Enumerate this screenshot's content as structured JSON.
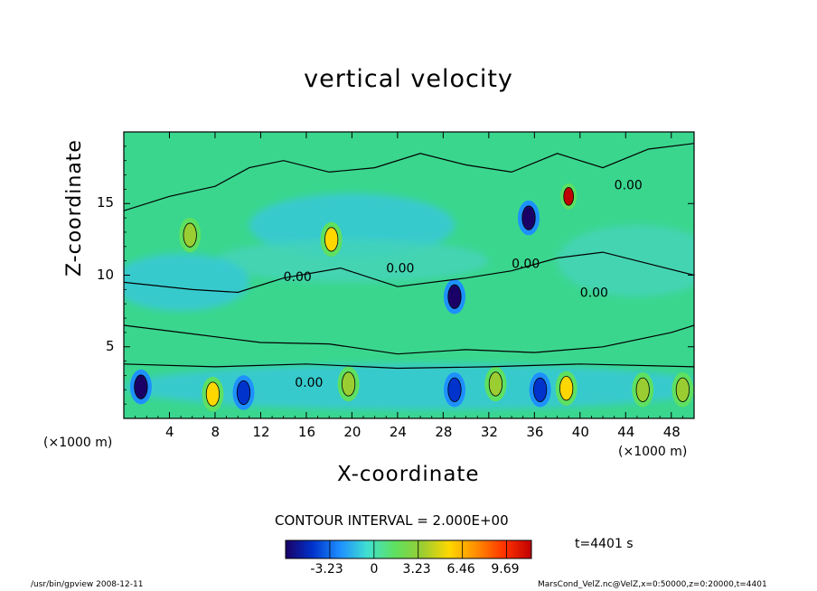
{
  "chart_data": {
    "type": "heatmap",
    "title": "vertical velocity",
    "xlabel": "X-coordinate",
    "ylabel": "Z-coordinate",
    "x_unit": "(×1000 m)",
    "y_unit": "(×1000 m)",
    "xlim": [
      0,
      50
    ],
    "ylim": [
      0,
      20
    ],
    "x_ticks": [
      4,
      8,
      12,
      16,
      20,
      24,
      28,
      32,
      36,
      40,
      44,
      48
    ],
    "y_ticks": [
      5,
      10,
      15
    ],
    "contour_labels": [
      "0.00",
      "0.00",
      "0.00",
      "0.00",
      "0.00",
      "0.00"
    ],
    "contour_interval": "CONTOUR INTERVAL = 2.000E+00",
    "time": "t=4401 s",
    "colorbar": {
      "range": [
        -6.46,
        11.5
      ],
      "ticks": [
        "-3.23",
        "0",
        "3.23",
        "6.46",
        "9.69"
      ],
      "colors": [
        "#1a0066",
        "#0033cc",
        "#1e90ff",
        "#40e0d0",
        "#5ee060",
        "#9acd32",
        "#ffd700",
        "#ff8c00",
        "#ff3300",
        "#c00000"
      ]
    },
    "features": [
      {
        "type": "updraft-core",
        "x": 7.8,
        "z": 1.7,
        "value": 5.5
      },
      {
        "type": "updraft-core",
        "x": 19.7,
        "z": 2.4,
        "value": 4.0
      },
      {
        "type": "updraft-core",
        "x": 32.6,
        "z": 2.4,
        "value": 4.0
      },
      {
        "type": "updraft-core",
        "x": 38.8,
        "z": 2.1,
        "value": 4.5
      },
      {
        "type": "updraft-core",
        "x": 45.5,
        "z": 2.0,
        "value": 4.0
      },
      {
        "type": "updraft-core",
        "x": 49.0,
        "z": 2.0,
        "value": 3.5
      },
      {
        "type": "updraft-core",
        "x": 39.0,
        "z": 15.5,
        "value": 11.0
      },
      {
        "type": "updraft-core",
        "x": 18.2,
        "z": 12.5,
        "value": 5.0
      },
      {
        "type": "updraft-core",
        "x": 5.8,
        "z": 12.8,
        "value": 4.0
      },
      {
        "type": "downdraft-core",
        "x": 1.5,
        "z": 2.2,
        "value": -5.0
      },
      {
        "type": "downdraft-core",
        "x": 10.5,
        "z": 1.8,
        "value": -4.5
      },
      {
        "type": "downdraft-core",
        "x": 29.0,
        "z": 2.0,
        "value": -4.5
      },
      {
        "type": "downdraft-core",
        "x": 36.5,
        "z": 2.0,
        "value": -4.5
      },
      {
        "type": "downdraft-core",
        "x": 29.0,
        "z": 8.5,
        "value": -5.0
      },
      {
        "type": "downdraft-core",
        "x": 35.5,
        "z": 14.0,
        "value": -5.0
      }
    ]
  },
  "footer": {
    "left": "/usr/bin/gpview   2008-12-11",
    "right": "MarsCond_VelZ.nc@VelZ,x=0:50000,z=0:20000,t=4401"
  }
}
